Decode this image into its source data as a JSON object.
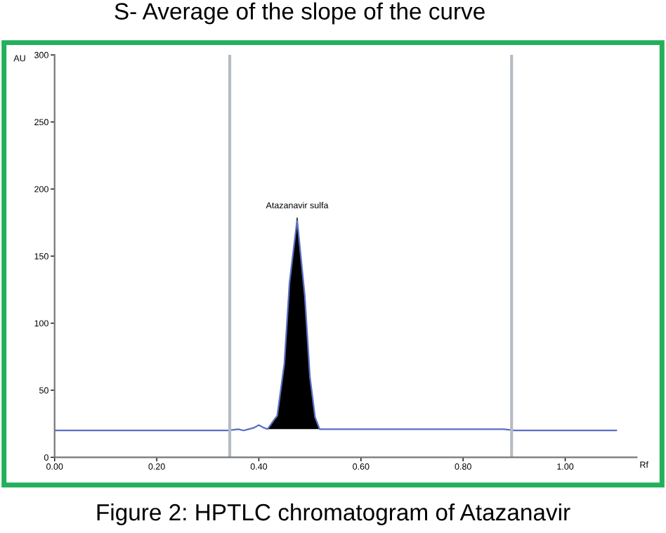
{
  "chart_data": {
    "type": "line",
    "title": "S- Average of the slope of the curve",
    "ylabel": "AU",
    "xlabel": "Rf",
    "series": [
      {
        "color": "#5b6fc4",
        "x": [
          0,
          0.34,
          0.36,
          0.37,
          0.38,
          0.39,
          0.4,
          0.41,
          0.417,
          0.43,
          0.436,
          0.45,
          0.46,
          0.475,
          0.49,
          0.5,
          0.51,
          0.519,
          0.54,
          0.6,
          0.7,
          0.8,
          0.88,
          0.9,
          1.1
        ],
        "values": [
          20,
          20,
          21,
          20,
          21,
          22,
          24,
          22,
          21,
          28,
          31,
          70,
          130,
          177,
          120,
          60,
          30,
          21,
          21,
          21,
          21,
          21,
          21,
          20,
          20
        ]
      },
      {
        "type": "area",
        "color": "#000000",
        "x": [
          0.417,
          0.43,
          0.436,
          0.45,
          0.46,
          0.475,
          0.49,
          0.5,
          0.51,
          0.519
        ],
        "values": [
          21,
          28,
          31,
          70,
          130,
          177,
          120,
          60,
          30,
          21
        ]
      }
    ],
    "xlim": [
      0,
      1.14
    ],
    "ylim": [
      0,
      300
    ],
    "xticks": [
      {
        "value": 0,
        "label": "0.00"
      },
      {
        "value": 0.2,
        "label": "0.20"
      },
      {
        "value": 0.4,
        "label": "0.40"
      },
      {
        "value": 0.6,
        "label": "0.60"
      },
      {
        "value": 0.8,
        "label": "0.80"
      },
      {
        "value": 1.0,
        "label": "1.00"
      }
    ],
    "yticks": [
      0,
      50,
      100,
      150,
      200,
      250,
      300
    ],
    "ref_lines": [
      {
        "axis": "x",
        "value": 0.343,
        "color": "#b4bcc4"
      },
      {
        "axis": "x",
        "value": 0.895,
        "color": "#b4bcc4"
      }
    ],
    "annotations": [
      {
        "text": "Atazanavir sulfa",
        "x": 0.475,
        "y": 177
      },
      "Figure 2: HPTLC chromatogram of Atazanavir"
    ],
    "marker": "none",
    "line_style": "solid",
    "grid": false
  }
}
